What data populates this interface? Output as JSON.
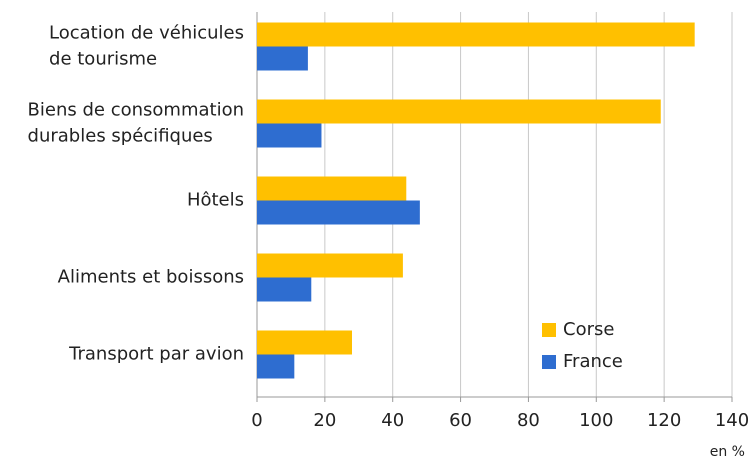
{
  "chart_data": {
    "type": "bar",
    "orientation": "horizontal",
    "categories": [
      [
        "Location de véhicules",
        "de tourisme"
      ],
      [
        "Biens de consommation",
        "durables spécifiques"
      ],
      [
        "Hôtels"
      ],
      [
        "Aliments et boissons"
      ],
      [
        "Transport par avion"
      ]
    ],
    "series": [
      {
        "name": "Corse",
        "color": "#ffc000",
        "values": [
          129,
          119,
          44,
          43,
          28
        ]
      },
      {
        "name": "France",
        "color": "#2e6dd0",
        "values": [
          15,
          19,
          48,
          16,
          11
        ]
      }
    ],
    "xlim": [
      0,
      140
    ],
    "xticks": [
      0,
      20,
      40,
      60,
      80,
      100,
      120,
      140
    ],
    "xlabel": "en %",
    "grid": true,
    "legend": "lower right"
  }
}
